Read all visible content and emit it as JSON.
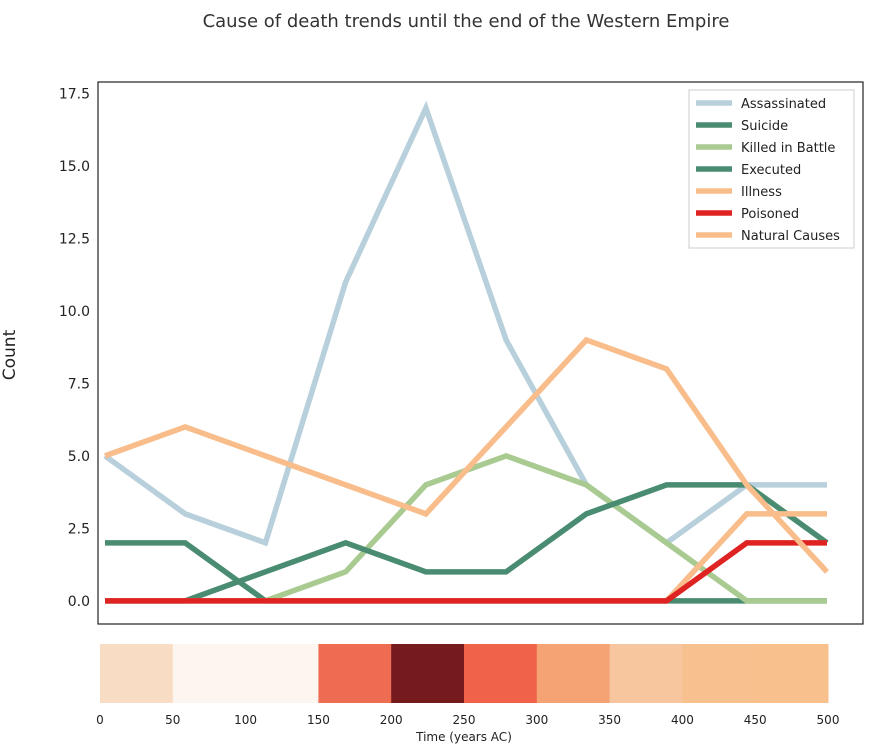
{
  "chart_data": {
    "type": "line",
    "title": "Cause of death trends until the end of the Western Empire",
    "xlabel": "",
    "ylabel": "Count",
    "x": [
      0,
      1,
      2,
      3,
      4,
      5,
      6,
      7,
      8,
      9
    ],
    "xlim": [
      0,
      9
    ],
    "ylim": [
      -0.8,
      17.9
    ],
    "yticks": [
      0.0,
      2.5,
      5.0,
      7.5,
      10.0,
      12.5,
      15.0,
      17.5
    ],
    "ytick_labels": [
      "0.0",
      "2.5",
      "5.0",
      "7.5",
      "10.0",
      "12.5",
      "15.0",
      "17.5"
    ],
    "grid": false,
    "legend_position": "top-right",
    "series": [
      {
        "name": "Assassinated",
        "color": "#b7d0dc",
        "values": [
          5,
          3,
          2,
          11,
          17,
          9,
          4,
          2,
          4,
          4
        ]
      },
      {
        "name": "Suicide",
        "color": "#4a8c72",
        "values": [
          2,
          2,
          0,
          0,
          0,
          0,
          0,
          0,
          0,
          0
        ]
      },
      {
        "name": "Killed in Battle",
        "color": "#a9ca90",
        "values": [
          0,
          0,
          0,
          1,
          4,
          5,
          4,
          2,
          0,
          0
        ]
      },
      {
        "name": "Executed",
        "color": "#4a8c72",
        "values": [
          0,
          0,
          1,
          2,
          1,
          1,
          3,
          4,
          4,
          2
        ]
      },
      {
        "name": "Illness",
        "color": "#f8bd8a",
        "values": [
          0,
          0,
          0,
          0,
          0,
          0,
          0,
          0,
          3,
          3
        ]
      },
      {
        "name": "Poisoned",
        "color": "#df2322",
        "values": [
          0,
          0,
          0,
          0,
          0,
          0,
          0,
          0,
          2,
          2
        ]
      },
      {
        "name": "Natural Causes",
        "color": "#f8bd8a",
        "values": [
          5,
          6,
          5,
          4,
          3,
          6,
          9,
          8,
          4,
          1
        ]
      }
    ],
    "timeline": {
      "xlabel": "Time (years AC)",
      "xlim": [
        0,
        500
      ],
      "ticks": [
        0,
        50,
        100,
        150,
        200,
        250,
        300,
        350,
        400,
        450,
        500
      ],
      "bands": [
        {
          "start": 0,
          "end": 50,
          "color": "#f8dcc4"
        },
        {
          "start": 50,
          "end": 150,
          "color": "#fdf5ef"
        },
        {
          "start": 150,
          "end": 200,
          "color": "#ee6d52"
        },
        {
          "start": 200,
          "end": 250,
          "color": "#751b1e"
        },
        {
          "start": 250,
          "end": 300,
          "color": "#f0634a"
        },
        {
          "start": 300,
          "end": 350,
          "color": "#f5a274"
        },
        {
          "start": 350,
          "end": 400,
          "color": "#f8c69e"
        },
        {
          "start": 400,
          "end": 450,
          "color": "#f7c08f"
        },
        {
          "start": 450,
          "end": 500,
          "color": "#f8c08d"
        }
      ]
    }
  }
}
